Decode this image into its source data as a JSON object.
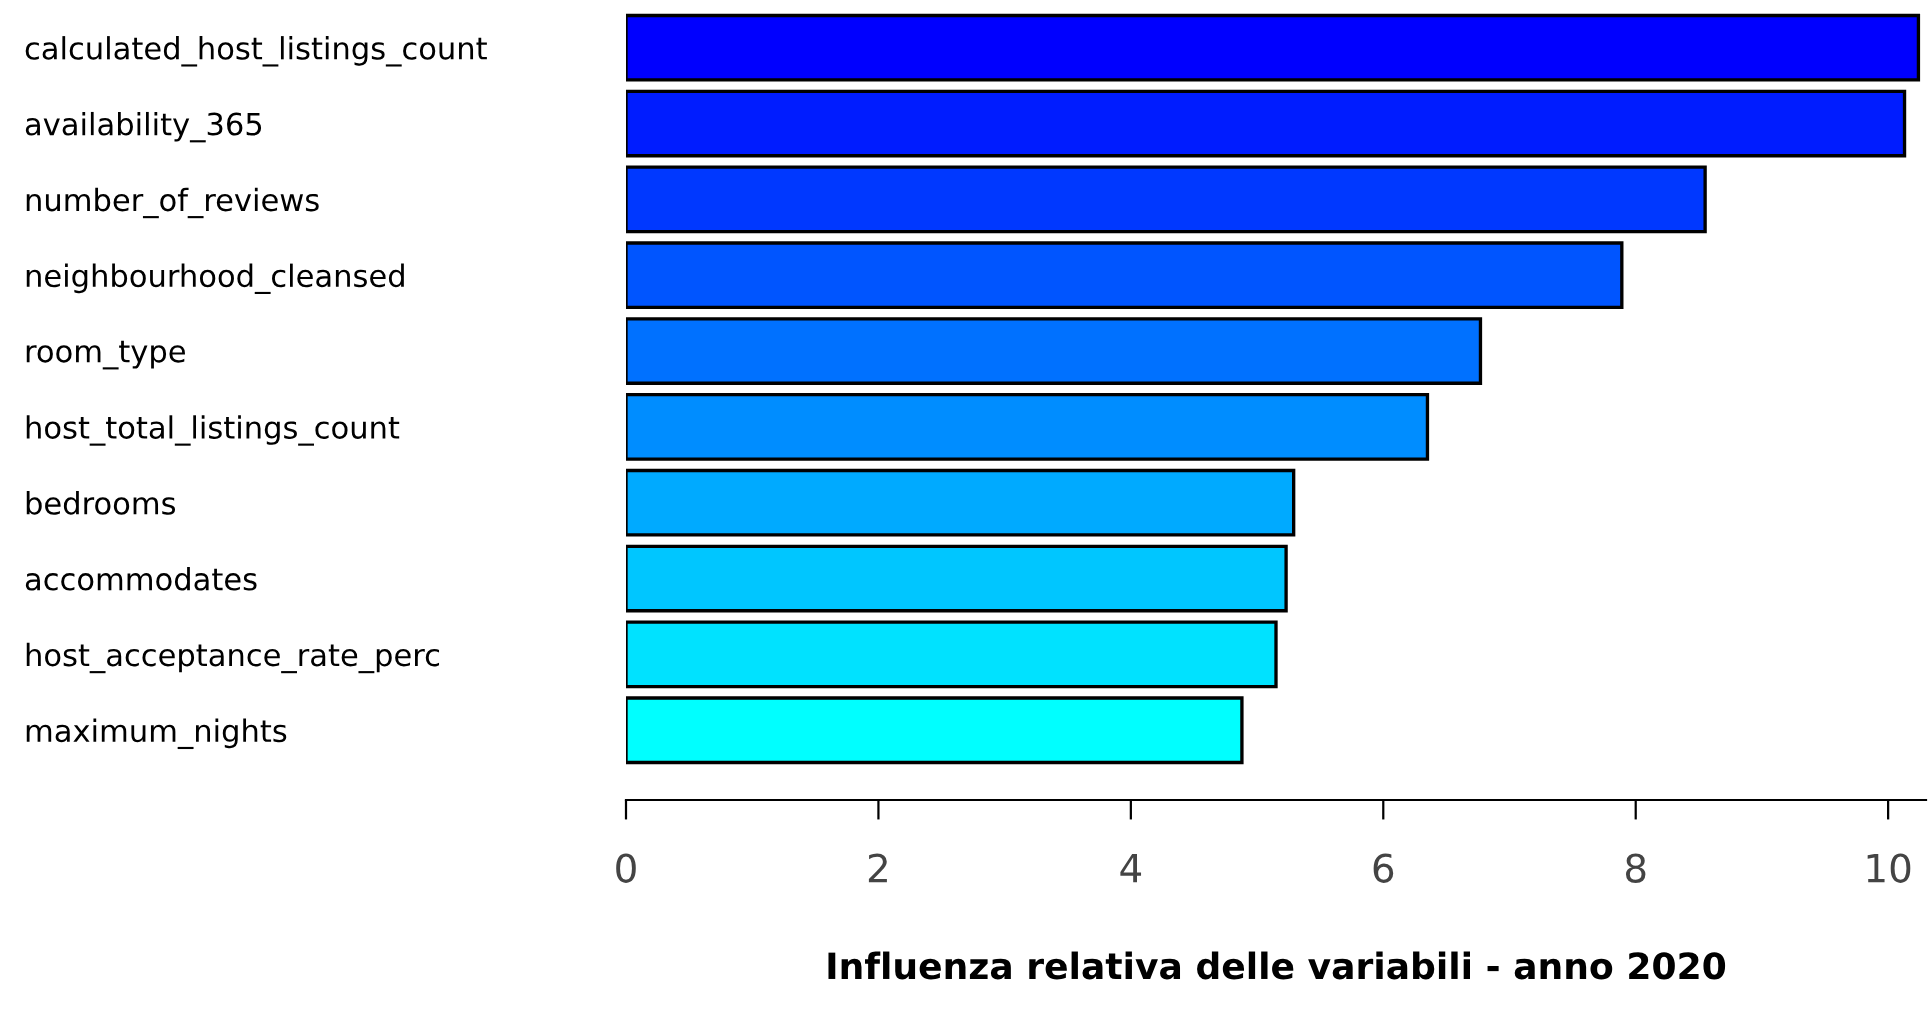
{
  "chart_data": {
    "type": "bar",
    "orientation": "horizontal",
    "xlabel": "Influenza relativa delle variabili - anno 2020",
    "categories": [
      "calculated_host_listings_count",
      "availability_365",
      "number_of_reviews",
      "neighbourhood_cleansed",
      "room_type",
      "host_total_listings_count",
      "bedrooms",
      "accommodates",
      "host_acceptance_rate_perc",
      "maximum_nights"
    ],
    "values": [
      10.24,
      10.13,
      8.55,
      7.89,
      6.77,
      6.35,
      5.29,
      5.23,
      5.15,
      4.88
    ],
    "colors": [
      "#0000ff",
      "#001cff",
      "#0038ff",
      "#0055ff",
      "#0071ff",
      "#008dff",
      "#00aaff",
      "#00c6ff",
      "#00e2ff",
      "#00ffff"
    ],
    "xlim": [
      0,
      10.3
    ],
    "xticks": [
      0,
      2,
      4,
      6,
      8,
      10
    ],
    "grid": false,
    "legend": false
  }
}
